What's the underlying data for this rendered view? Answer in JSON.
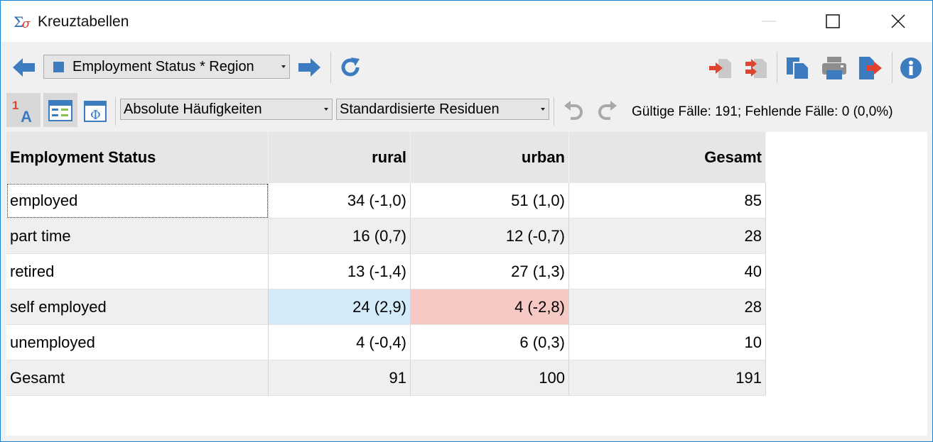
{
  "window": {
    "title": "Kreuztabellen",
    "app_icon": "sigma-icon"
  },
  "toolbar": {
    "back_icon": "arrow-left-icon",
    "table_selector": "Employment Status * Region",
    "forward_icon": "arrow-right-icon",
    "refresh_icon": "refresh-icon",
    "right_icons": [
      "import-icon",
      "export-icon",
      "copy-icon",
      "print-icon",
      "send-icon",
      "info-icon"
    ],
    "format_icons": [
      "label-format-icon",
      "table-layout-icon",
      "phi-icon"
    ],
    "display_mode": "Absolute Häufigkeiten",
    "residual_mode": "Standardisierte Residuen",
    "undo_icon": "undo-icon",
    "redo_icon": "redo-icon",
    "status": "Gültige Fälle: 191;  Fehlende Fälle: 0 (0,0%)"
  },
  "table": {
    "columns": [
      "Employment Status",
      "rural",
      "urban",
      "Gesamt"
    ],
    "rows": [
      {
        "label": "employed",
        "rural": "34 (-1,0)",
        "urban": "51 (1,0)",
        "total": "85"
      },
      {
        "label": "part time",
        "rural": "16 (0,7)",
        "urban": "12 (-0,7)",
        "total": "28"
      },
      {
        "label": "retired",
        "rural": "13 (-1,4)",
        "urban": "27 (1,3)",
        "total": "40"
      },
      {
        "label": "self employed",
        "rural": "24 (2,9)",
        "urban": "4 (-2,8)",
        "total": "28"
      },
      {
        "label": "unemployed",
        "rural": "4 (-0,4)",
        "urban": "6 (0,3)",
        "total": "10"
      },
      {
        "label": "Gesamt",
        "rural": "91",
        "urban": "100",
        "total": "191"
      }
    ]
  },
  "colors": {
    "accent": "#1883d7",
    "positive_residual": "#d4ebfa",
    "negative_residual": "#f6c9c4",
    "icon_blue": "#3d7cc1",
    "icon_red": "#e0432f"
  }
}
